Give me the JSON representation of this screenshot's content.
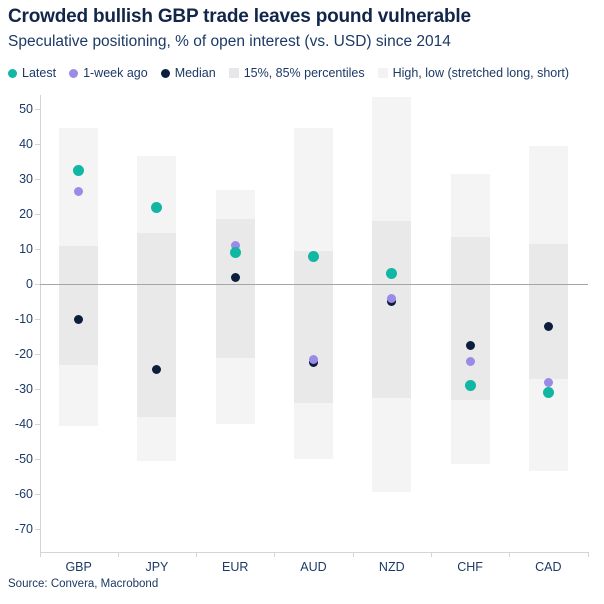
{
  "header": {
    "title": "Crowded bullish GBP trade leaves pound vulnerable",
    "subtitle": "Speculative positioning, % of open interest (vs. USD) since 2014"
  },
  "legend": [
    {
      "label": "Latest",
      "marker": "dot",
      "color": "#11b7a2"
    },
    {
      "label": "1-week ago",
      "marker": "dot",
      "color": "#9c8ae8"
    },
    {
      "label": "Median",
      "marker": "dot",
      "color": "#0d1e3d"
    },
    {
      "label": "15%, 85% percentiles",
      "marker": "square",
      "color": "#e7e7e9"
    },
    {
      "label": "High, low (stretched long, short)",
      "marker": "square",
      "color": "#f3f3f4"
    }
  ],
  "chart_data": {
    "type": "scatter",
    "subtype": "dot-plot-with-floating-range-bars",
    "title": "Crowded bullish GBP trade leaves pound vulnerable",
    "subtitle": "Speculative positioning, % of open interest (vs. USD) since 2014",
    "categories": [
      "GBP",
      "JPY",
      "EUR",
      "AUD",
      "NZD",
      "CHF",
      "CAD"
    ],
    "series": [
      {
        "name": "High",
        "role": "range-top",
        "values": [
          44.5,
          36.5,
          27,
          44.5,
          53.5,
          31.5,
          39.5
        ]
      },
      {
        "name": "85% percentile",
        "role": "band-top",
        "values": [
          11,
          14.5,
          18.5,
          9.5,
          18,
          13.5,
          11.5
        ]
      },
      {
        "name": "15% percentile",
        "role": "band-bottom",
        "values": [
          -23,
          -38,
          -21,
          -34,
          -32.5,
          -33,
          -27
        ]
      },
      {
        "name": "Low",
        "role": "range-bottom",
        "values": [
          -40.5,
          -50.5,
          -40,
          -50,
          -59.5,
          -51.5,
          -53.5
        ]
      },
      {
        "name": "Median",
        "role": "dot",
        "values": [
          -10,
          -24.5,
          2,
          -22.5,
          -5,
          -17.5,
          -12
        ]
      },
      {
        "name": "1-week ago",
        "role": "dot",
        "values": [
          26.5,
          22,
          11,
          -21.5,
          -4,
          -22,
          -28
        ]
      },
      {
        "name": "Latest",
        "role": "dot",
        "values": [
          32.5,
          22,
          9,
          8,
          3,
          -29,
          -31
        ]
      }
    ],
    "xlabel": "",
    "ylabel": "",
    "ylim": [
      -76,
      54
    ],
    "yticks": [
      50,
      40,
      30,
      20,
      10,
      0,
      -10,
      -20,
      -30,
      -40,
      -50,
      -60,
      -70
    ],
    "grid": "off",
    "zero_line": true,
    "legend_position": "top"
  },
  "source": "Source: Convera, Macrobond",
  "colors": {
    "title_text": "#12264a",
    "body_text": "#1c3a66",
    "latest": "#11b7a2",
    "week_ago": "#9c8ae8",
    "median": "#0d1e3d",
    "percentile_band": "#e9e9ea",
    "high_low_band": "#f4f4f5",
    "zero_line": "#a6a6a6",
    "axis_line": "#d4d4d4"
  }
}
